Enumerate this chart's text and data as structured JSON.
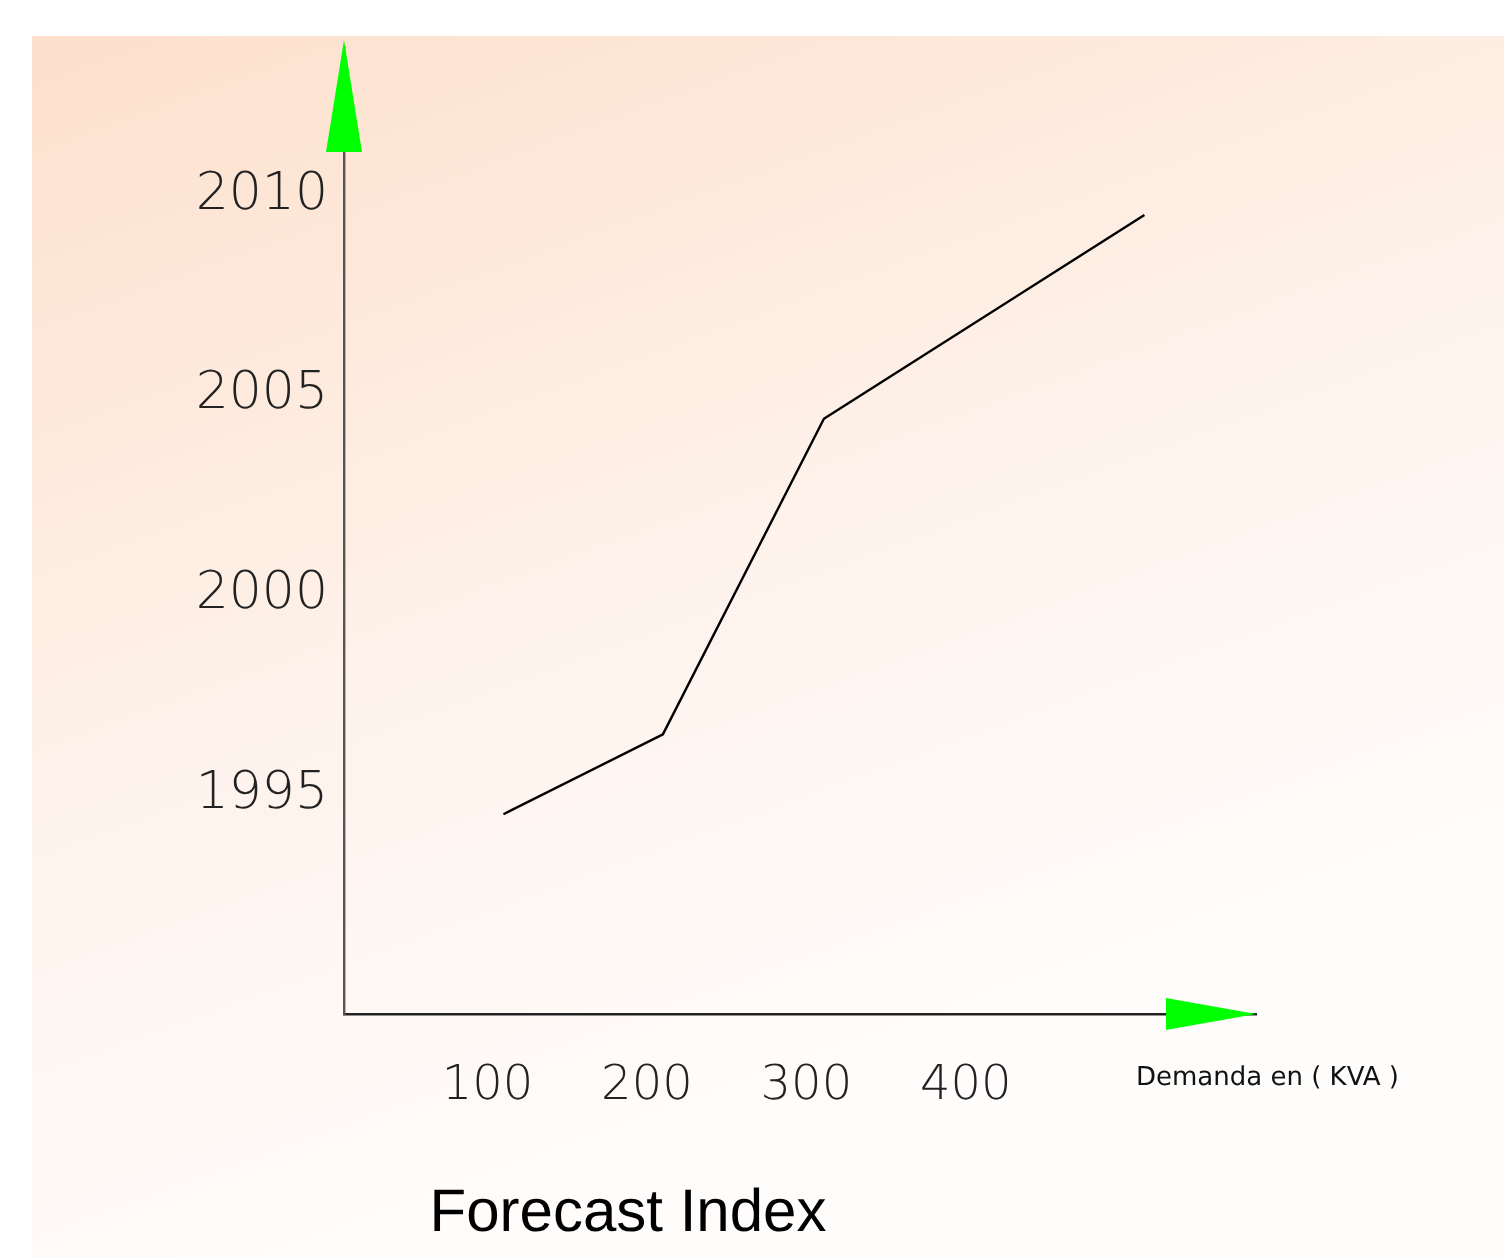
{
  "chart_data": {
    "type": "line",
    "title": "Forecast Index",
    "xlabel": "Demanda en ( KVA )",
    "x": [
      110,
      210,
      311,
      512
    ],
    "series": [
      {
        "color": "#000000",
        "values": [
          1994.5,
          1996.5,
          2004.4,
          2009.5
        ]
      }
    ],
    "xlim": [
      10,
      582
    ],
    "xticks": [
      100,
      200,
      300,
      400
    ],
    "ylim": [
      1989.5,
      2013.7
    ],
    "yticks": [
      1995,
      2000,
      2005,
      2010
    ],
    "grid": false,
    "legend": false,
    "marker": "none",
    "line_style": "solid"
  }
}
